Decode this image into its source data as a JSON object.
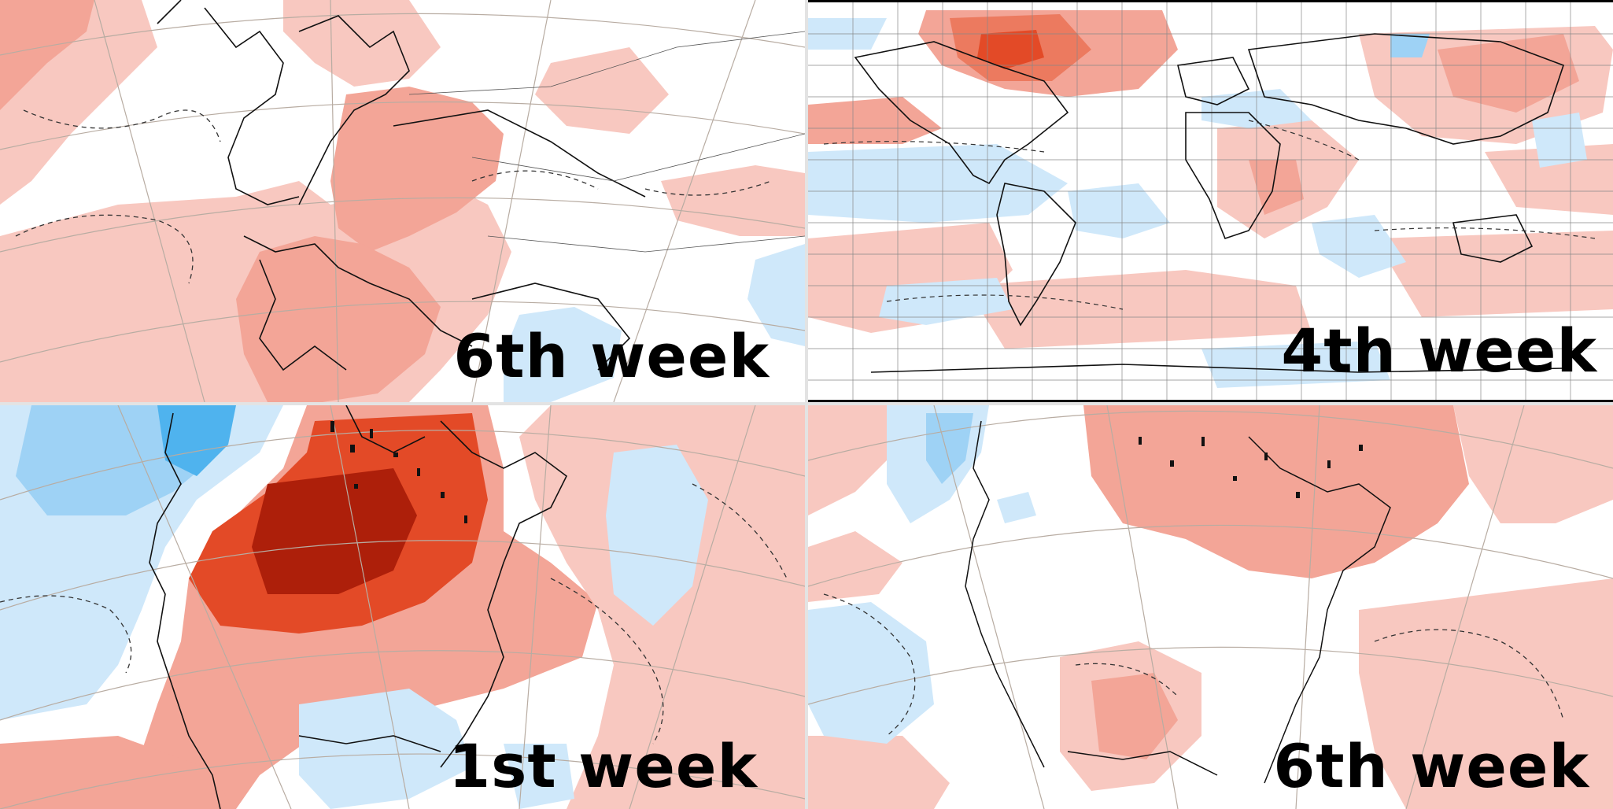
{
  "panels": [
    {
      "region": "europe",
      "label": "6th week"
    },
    {
      "region": "world",
      "label": "4th week"
    },
    {
      "region": "north-america",
      "label": "1st week"
    },
    {
      "region": "north-america",
      "label": "6th week"
    }
  ],
  "colors": {
    "anomaly_pos_light": "#f8c8c0",
    "anomaly_pos_mid": "#f3a597",
    "anomaly_pos_strong": "#ec7a5f",
    "anomaly_pos_very_strong": "#e34a27",
    "anomaly_pos_extreme": "#ad1f0a",
    "anomaly_neg_light": "#cfe8fa",
    "anomaly_neg_mid": "#9ed2f5",
    "anomaly_neg_strong": "#4fb3ee",
    "neutral": "#ffffff",
    "coastline": "#111111",
    "graticule": "#b8aca2"
  }
}
